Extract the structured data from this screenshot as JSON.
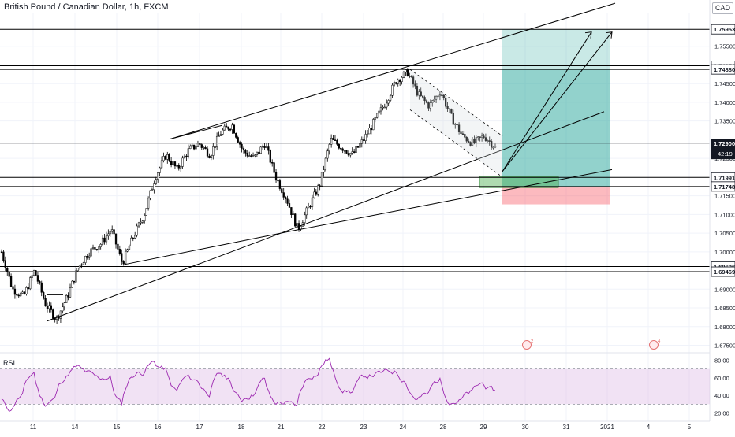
{
  "header": {
    "symbol_title": "British Pound / Canadian Dollar, 1h, FXCM",
    "currency": "CAD"
  },
  "colors": {
    "candle": "#000000",
    "trendline": "#000000",
    "long_target_zone": "#26a69a",
    "stop_zone": "#f7525f",
    "entry_box": "#4caf50",
    "rsi_line": "#9c27b0",
    "rsi_band": "#e1bee7",
    "price_tag_bg": "#131722"
  },
  "icons": [
    "dividend-marker-icon",
    "dividend-marker-icon"
  ],
  "markers": [
    {
      "label": "2",
      "x_label": "30"
    },
    {
      "label": "4",
      "x_label": "4"
    }
  ],
  "rsi": {
    "label": "RSI",
    "upper": 70,
    "lower": 30,
    "axis_labels": [
      "80.00",
      "60.00",
      "40.00",
      "20.00"
    ]
  },
  "countdown": "42:19",
  "chart_data": {
    "type": "candlestick",
    "title": "British Pound / Canadian Dollar, 1h, FXCM",
    "x_ticks": [
      "11",
      "14",
      "15",
      "16",
      "17",
      "18",
      "21",
      "22",
      "23",
      "24",
      "28",
      "29",
      "30",
      "31",
      "2021",
      "4",
      "5"
    ],
    "y_ticks": [
      "1.75500",
      "1.75000",
      "1.74500",
      "1.74000",
      "1.73500",
      "1.72500",
      "1.71500",
      "1.71000",
      "1.70500",
      "1.70000",
      "1.69000",
      "1.68500",
      "1.68000",
      "1.67500"
    ],
    "ylim": [
      1.673,
      1.764
    ],
    "horizontal_levels": [
      {
        "label": "1.75953",
        "value": 1.75953
      },
      {
        "label": "1.74979",
        "value": 1.74979
      },
      {
        "label": "1.74880",
        "value": 1.7488
      },
      {
        "label": "1.71991",
        "value": 1.71991
      },
      {
        "label": "1.71748",
        "value": 1.71748
      },
      {
        "label": "1.69606",
        "value": 1.69606
      },
      {
        "label": "1.69469",
        "value": 1.69469
      }
    ],
    "current_price": {
      "label": "1.72900",
      "value": 1.729
    },
    "path": [
      1.7,
      1.69,
      1.688,
      1.695,
      1.686,
      1.682,
      1.688,
      1.696,
      1.7,
      1.702,
      1.706,
      1.697,
      1.704,
      1.71,
      1.72,
      1.726,
      1.722,
      1.727,
      1.729,
      1.726,
      1.732,
      1.734,
      1.727,
      1.725,
      1.729,
      1.72,
      1.714,
      1.706,
      1.712,
      1.718,
      1.73,
      1.728,
      1.726,
      1.73,
      1.735,
      1.74,
      1.746,
      1.748,
      1.742,
      1.739,
      1.743,
      1.736,
      1.731,
      1.729,
      1.731,
      1.728
    ]
  }
}
